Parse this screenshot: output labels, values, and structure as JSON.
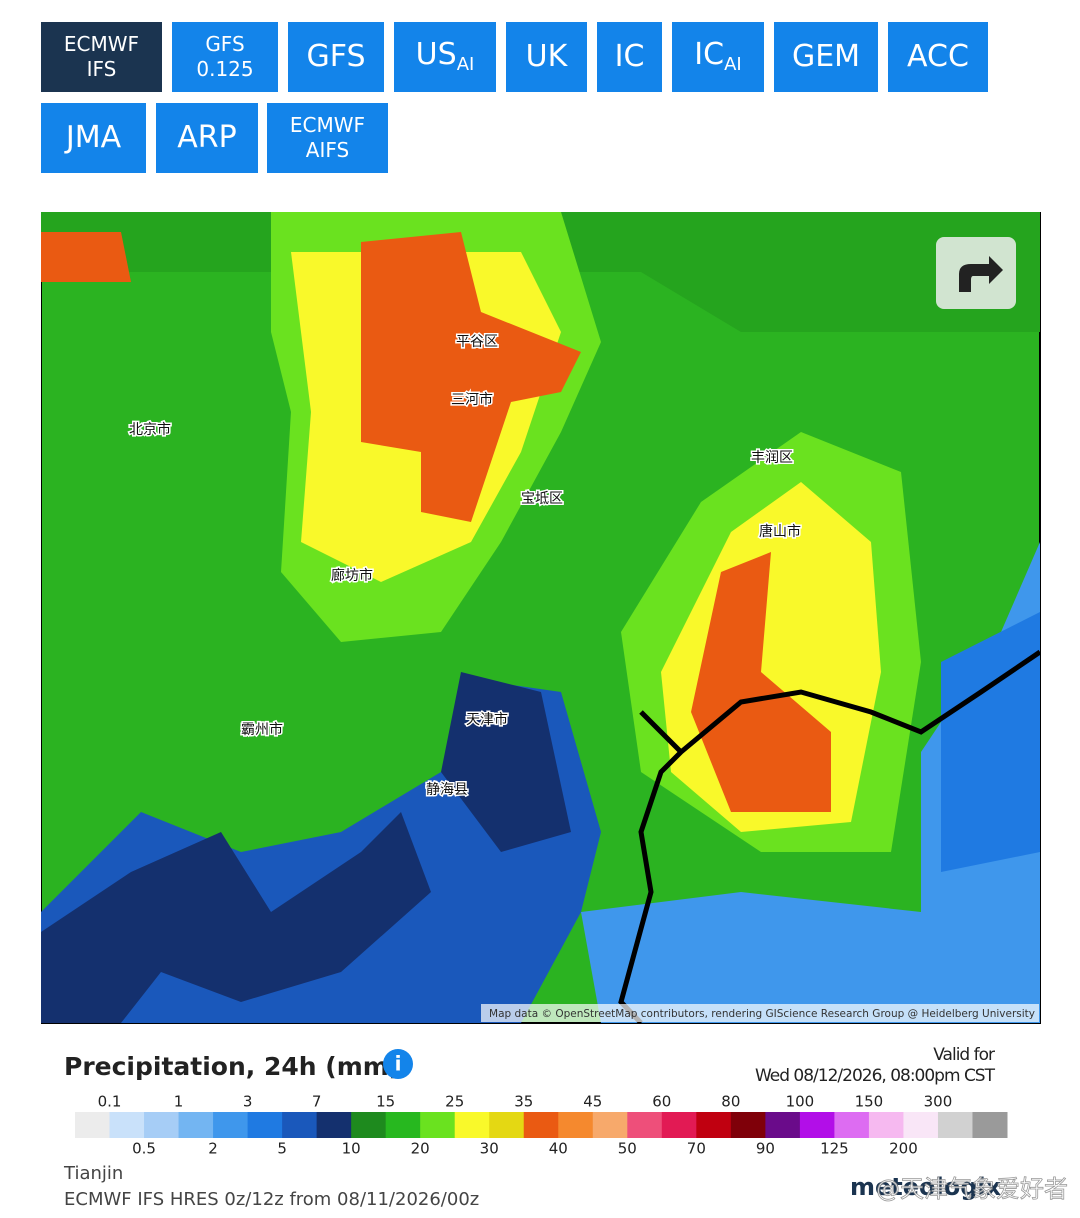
{
  "models": [
    {
      "lines": [
        "ECMWF",
        "IFS"
      ],
      "active": true
    },
    {
      "lines": [
        "GFS",
        "0.125"
      ]
    },
    {
      "text": "GFS"
    },
    {
      "text": "US",
      "sub": "AI"
    },
    {
      "text": "UK"
    },
    {
      "text": "IC"
    },
    {
      "text": "IC",
      "sub": "AI"
    },
    {
      "text": "GEM"
    },
    {
      "text": "ACC"
    },
    {
      "text": "JMA"
    },
    {
      "text": "ARP"
    },
    {
      "lines": [
        "ECMWF",
        "AIFS"
      ]
    }
  ],
  "map": {
    "places": [
      "北京市",
      "天津市",
      "唐山市",
      "廊坊市",
      "平谷区",
      "三河市",
      "宝坻区",
      "静海县",
      "霸州市",
      "丰润区"
    ],
    "attribution": "Map data © OpenStreetMap contributors, rendering GIScience Research Group @ Heidelberg University"
  },
  "legend": {
    "title": "Precipitation, 24h (mm)",
    "valid_label": "Valid for",
    "valid_time": "Wed 08/12/2026, 08:00pm CST",
    "thresholds": [
      0.1,
      0.5,
      1,
      2,
      3,
      5,
      7,
      10,
      15,
      20,
      25,
      30,
      35,
      40,
      45,
      50,
      60,
      70,
      80,
      90,
      100,
      125,
      150,
      200,
      300
    ],
    "colors": [
      "#ececec",
      "#c9e1fa",
      "#a6cdf6",
      "#73b5f2",
      "#3f97ec",
      "#1f7ae2",
      "#1a58bb",
      "#14306e",
      "#1e8a1e",
      "#27b81f",
      "#6ae21f",
      "#f9f92a",
      "#e4d813",
      "#ea5a12",
      "#f5892e",
      "#f7a96b",
      "#ee4f7a",
      "#e21a54",
      "#c00010",
      "#7f0009",
      "#6a0b8a",
      "#b20ee8",
      "#dd6cf2",
      "#f6b9f0",
      "#f9e6f7",
      "#d1d1d1",
      "#9a9a9a"
    ],
    "location": "Tianjin",
    "run": "ECMWF IFS HRES 0z/12z from 08/11/2026/00z",
    "brand": "meteologix",
    "watermark": "@天津气象爱好者"
  }
}
